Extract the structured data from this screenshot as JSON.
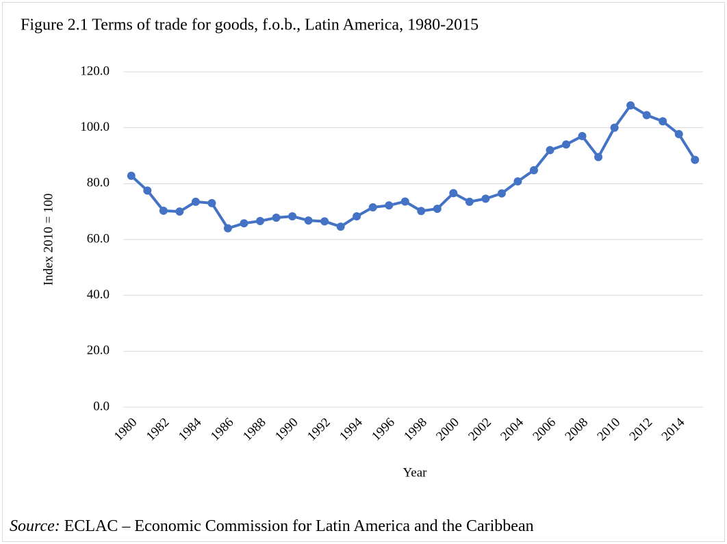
{
  "chart_data": {
    "type": "line",
    "title": "Figure 2.1 Terms of trade for goods, f.o.b., Latin America, 1980-2015",
    "ylabel": "Index 2010 = 100",
    "xlabel": "Year",
    "source_label": "Source:",
    "source": "ECLAC – Economic Commission for Latin America and the Caribbean",
    "categories": [
      "1980",
      null,
      "1982",
      null,
      "1984",
      null,
      "1986",
      null,
      "1988",
      null,
      "1990",
      null,
      "1992",
      null,
      "1994",
      null,
      "1996",
      null,
      "1998",
      null,
      "2000",
      null,
      "2002",
      null,
      "2004",
      null,
      "2006",
      null,
      "2008",
      null,
      "2010",
      null,
      "2012",
      null,
      "2014",
      null
    ],
    "series": [
      {
        "name": "Terms of trade",
        "color": "#4472c4",
        "values": [
          82.8,
          77.5,
          70.3,
          70.0,
          73.5,
          73.0,
          64.0,
          65.8,
          66.6,
          67.8,
          68.3,
          66.8,
          66.5,
          64.6,
          68.3,
          71.5,
          72.2,
          73.6,
          70.2,
          71.0,
          76.6,
          73.5,
          74.6,
          76.5,
          80.8,
          84.8,
          92.0,
          94.0,
          97.0,
          89.5,
          100.0,
          108.0,
          104.5,
          102.3,
          97.7,
          88.5
        ]
      }
    ],
    "ylim": [
      0,
      120
    ],
    "yticks": [
      {
        "value": 0,
        "label": "0.0"
      },
      {
        "value": 20,
        "label": "20.0"
      },
      {
        "value": 40,
        "label": "40.0"
      },
      {
        "value": 60,
        "label": "60.0"
      },
      {
        "value": 80,
        "label": "80.0"
      },
      {
        "value": 100,
        "label": "100.0"
      },
      {
        "value": 120,
        "label": "120.0"
      }
    ],
    "grid": true
  }
}
